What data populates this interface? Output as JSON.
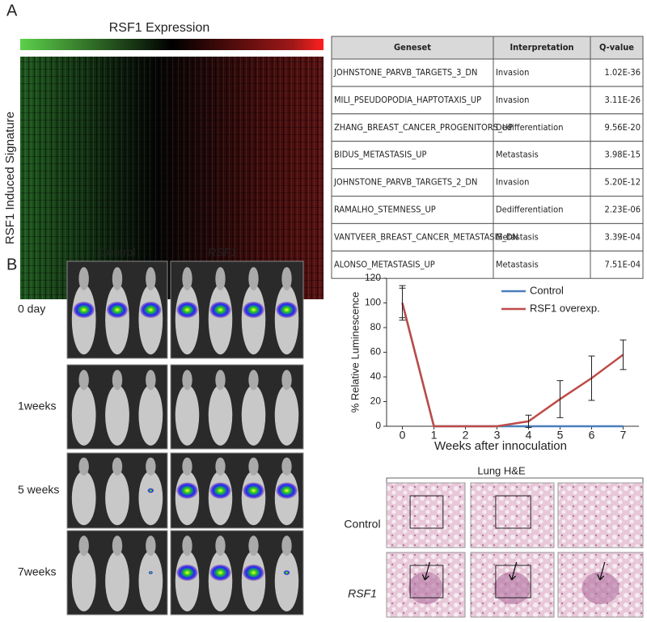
{
  "panel_a": {
    "label": "A",
    "heatmap": {
      "title": "RSF1 Expression",
      "ylabel": "RSF1 Induced Signature"
    },
    "table": {
      "header": [
        "Geneset",
        "Interpretation",
        "Q-value"
      ],
      "rows": [
        [
          "JOHNSTONE_PARVB_TARGETS_3_DN",
          "Invasion",
          "1.02E-36"
        ],
        [
          "MILI_PSEUDOPODIA_HAPTOTAXIS_UP",
          "Invasion",
          "3.11E-26"
        ],
        [
          "ZHANG_BREAST_CANCER_PROGENITORS_UP",
          "Dedifferentiation",
          "9.56E-20"
        ],
        [
          "BIDUS_METASTASIS_UP",
          "Metastasis",
          "3.98E-15"
        ],
        [
          "JOHNSTONE_PARVB_TARGETS_2_DN",
          "Invasion",
          "5.20E-12"
        ],
        [
          "RAMALHO_STEMNESS_UP",
          "Dedifferentiation",
          "2.23E-06"
        ],
        [
          "VANTVEER_BREAST_CANCER_METASTASIS_DN",
          "Metastasis",
          "3.39E-04"
        ],
        [
          "ALONSO_METASTASIS_UP",
          "Metastasis",
          "7.51E-04"
        ]
      ]
    }
  },
  "panel_b": {
    "label": "B",
    "imaging": {
      "columns": [
        "Control",
        "RSF1"
      ],
      "rows": [
        "0 day",
        "1weeks",
        "5 weeks",
        "7weeks"
      ]
    },
    "histology": {
      "title": "Lung H&E",
      "rows": [
        "Control",
        "RSF1"
      ]
    }
  },
  "chart_data": {
    "type": "line",
    "ylabel": "% Relative Luminescence",
    "xlabel": "Weeks after innoculation",
    "x": [
      0,
      1,
      2,
      3,
      4,
      5,
      6,
      7
    ],
    "xlim": [
      -0.5,
      7.5
    ],
    "xticks": [
      0,
      1,
      2,
      3,
      4,
      5,
      6,
      7
    ],
    "ylim": [
      0,
      120
    ],
    "yticks": [
      0,
      20,
      40,
      60,
      80,
      100,
      120
    ],
    "legend": "upper right",
    "series": [
      {
        "name": "Control",
        "color": "#4a7ebb",
        "values": [
          100,
          0,
          0,
          0,
          0,
          0,
          0,
          0
        ],
        "errors": [
          12,
          null,
          null,
          null,
          null,
          null,
          null,
          null
        ]
      },
      {
        "name": "RSF1 overexp.",
        "color": "#be4b48",
        "values": [
          100,
          0,
          0,
          0,
          4,
          22,
          39,
          58
        ],
        "errors": [
          14,
          null,
          null,
          null,
          5,
          15,
          18,
          12
        ]
      }
    ]
  }
}
